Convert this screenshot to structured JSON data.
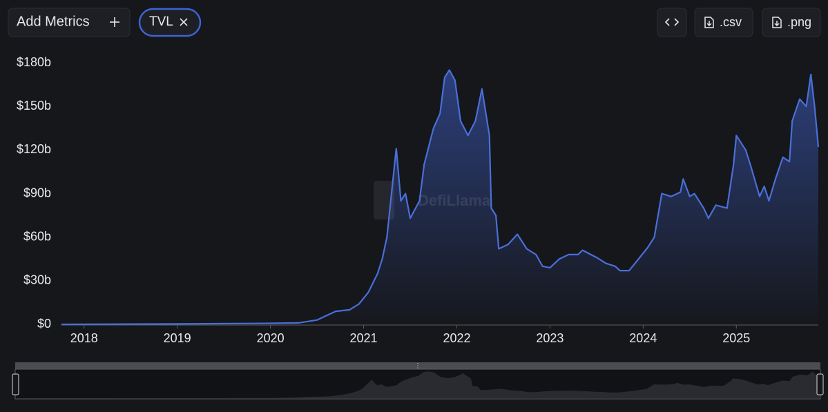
{
  "toolbar": {
    "add_button": "Add Metrics",
    "metric_chip": "TVL",
    "csv_button": ".csv",
    "png_button": ".png"
  },
  "chart_data": {
    "type": "area",
    "watermark": "DefiLlama",
    "series": [
      {
        "name": "TVL",
        "color": "#4a6fd8",
        "x": [
          2017.76,
          2019.0,
          2020.0,
          2020.3,
          2020.5,
          2020.6,
          2020.7,
          2020.85,
          2020.95,
          2021.05,
          2021.15,
          2021.2,
          2021.25,
          2021.35,
          2021.4,
          2021.45,
          2021.5,
          2021.6,
          2021.65,
          2021.75,
          2021.82,
          2021.87,
          2021.92,
          2021.98,
          2022.04,
          2022.12,
          2022.2,
          2022.27,
          2022.35,
          2022.37,
          2022.42,
          2022.45,
          2022.55,
          2022.65,
          2022.75,
          2022.85,
          2022.92,
          2023.0,
          2023.1,
          2023.2,
          2023.3,
          2023.35,
          2023.5,
          2023.6,
          2023.7,
          2023.75,
          2023.85,
          2023.95,
          2024.05,
          2024.12,
          2024.2,
          2024.3,
          2024.4,
          2024.43,
          2024.5,
          2024.55,
          2024.65,
          2024.7,
          2024.78,
          2024.9,
          2024.97,
          2025.0,
          2025.1,
          2025.15,
          2025.25,
          2025.3,
          2025.35,
          2025.42,
          2025.5,
          2025.57,
          2025.6,
          2025.68,
          2025.75,
          2025.8,
          2025.84,
          2025.88
        ],
        "values": [
          0,
          0.3,
          0.7,
          1,
          3,
          6,
          9,
          10,
          14,
          22,
          35,
          45,
          60,
          121,
          85,
          90,
          73,
          85,
          110,
          135,
          145,
          170,
          175,
          168,
          140,
          130,
          140,
          162,
          130,
          80,
          75,
          52,
          55,
          62,
          52,
          48,
          40,
          39,
          45,
          48,
          48,
          51,
          46,
          42,
          40,
          37,
          37,
          45,
          53,
          60,
          90,
          88,
          91,
          100,
          88,
          90,
          80,
          73,
          82,
          80,
          110,
          130,
          120,
          110,
          88,
          95,
          85,
          100,
          115,
          112,
          140,
          155,
          150,
          172,
          150,
          122
        ]
      }
    ],
    "xlim": [
      2017.75,
      2025.88
    ],
    "xticks": [
      2018,
      2019,
      2020,
      2021,
      2022,
      2023,
      2024,
      2025
    ],
    "ylim": [
      0,
      180
    ],
    "yticks": [
      {
        "value": 0,
        "label": "$0"
      },
      {
        "value": 30,
        "label": "$30b"
      },
      {
        "value": 60,
        "label": "$60b"
      },
      {
        "value": 90,
        "label": "$90b"
      },
      {
        "value": 120,
        "label": "$120b"
      },
      {
        "value": 150,
        "label": "$150b"
      },
      {
        "value": 180,
        "label": "$180b"
      }
    ],
    "grid": false
  }
}
